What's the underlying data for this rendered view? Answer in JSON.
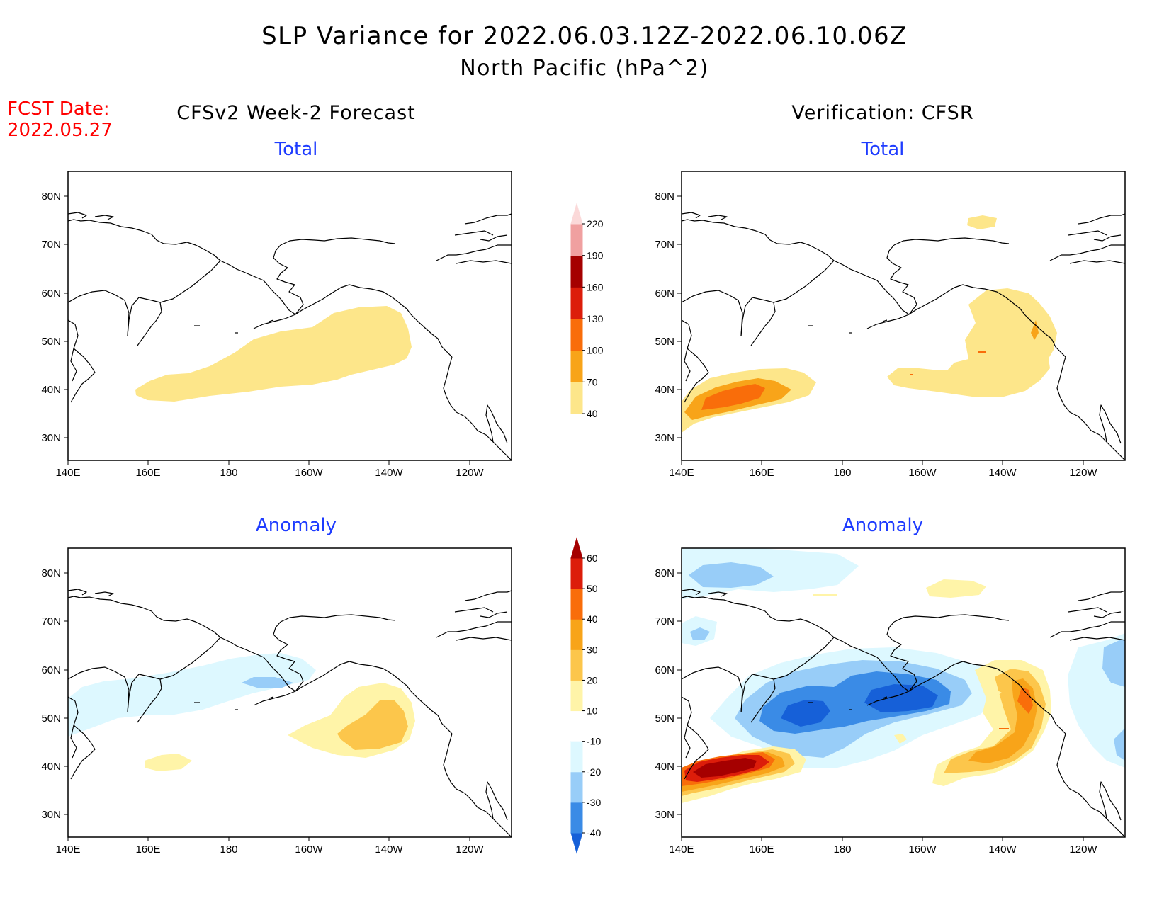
{
  "header": {
    "title_line1": "SLP Variance for 2022.06.03.12Z-2022.06.10.06Z",
    "title_line2": "North Pacific (hPa^2)",
    "fcst_date_label": "FCST Date:",
    "fcst_date_value": "2022.05.27"
  },
  "columns": {
    "left_title": "CFSv2 Week-2 Forecast",
    "right_title": "Verification: CFSR"
  },
  "panels": [
    {
      "id": "fcst-total",
      "subtitle": "Total"
    },
    {
      "id": "verif-total",
      "subtitle": "Total"
    },
    {
      "id": "fcst-anomaly",
      "subtitle": "Anomaly"
    },
    {
      "id": "verif-anomaly",
      "subtitle": "Anomaly"
    }
  ],
  "axes": {
    "x_ticks": [
      "140E",
      "160E",
      "180",
      "160W",
      "140W",
      "120W"
    ],
    "y_ticks": [
      "80N",
      "70N",
      "60N",
      "50N",
      "40N",
      "30N"
    ]
  },
  "colorbars": {
    "total": {
      "levels": [
        "40",
        "70",
        "100",
        "130",
        "160",
        "190",
        "220"
      ],
      "colors": [
        "#fde68a",
        "#f8a419",
        "#f96d0a",
        "#dc1d0a",
        "#a50000",
        "#f0a0a0",
        "#fbd9d9"
      ]
    },
    "anomaly": {
      "levels": [
        "-40",
        "-30",
        "-20",
        "-10",
        "10",
        "20",
        "30",
        "40",
        "50",
        "60"
      ],
      "colors": [
        "#1660d8",
        "#3a8be6",
        "#98cdf8",
        "#ddf8ff",
        "#ffffff",
        "#fff4a8",
        "#fcc64b",
        "#f8a419",
        "#f96d0a",
        "#dc1d0a",
        "#a50000"
      ]
    }
  },
  "colors": {
    "title": "#000000",
    "fcst_date": "#ff0000",
    "subtitle": "#1e3cff"
  }
}
